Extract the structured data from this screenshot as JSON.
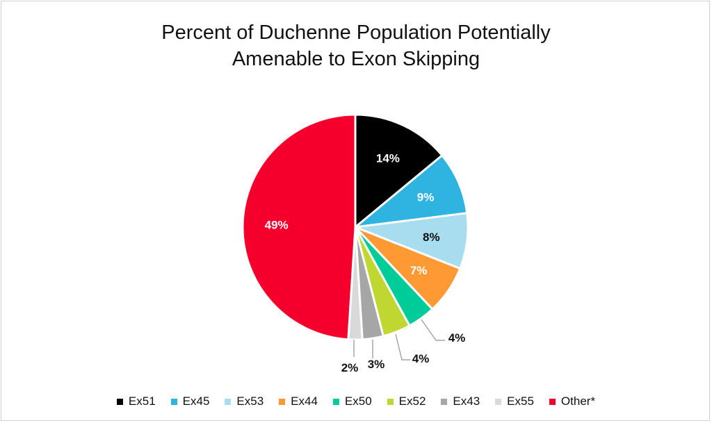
{
  "chart_data": {
    "type": "pie",
    "title": "Percent of Duchenne Population Potentially Amenable to Exon Skipping",
    "title_lines": [
      "Percent of Duchenne Population Potentially",
      "Amenable to Exon Skipping"
    ],
    "categories": [
      "Ex51",
      "Ex45",
      "Ex53",
      "Ex44",
      "Ex50",
      "Ex52",
      "Ex43",
      "Ex55",
      "Other*"
    ],
    "values": [
      14,
      9,
      8,
      7,
      4,
      4,
      3,
      2,
      49
    ],
    "labels": [
      "14%",
      "9%",
      "8%",
      "7%",
      "4%",
      "4%",
      "3%",
      "2%",
      "49%"
    ],
    "colors": [
      "#000000",
      "#2FB3E0",
      "#A8DDF0",
      "#FF9933",
      "#00CC99",
      "#BFD730",
      "#A6A6A6",
      "#D9D9D9",
      "#F5002D"
    ],
    "label_colors": [
      "#ffffff",
      "#ffffff",
      "#111111",
      "#ffffff",
      "#111111",
      "#111111",
      "#111111",
      "#111111",
      "#ffffff"
    ],
    "legend_position": "bottom"
  }
}
